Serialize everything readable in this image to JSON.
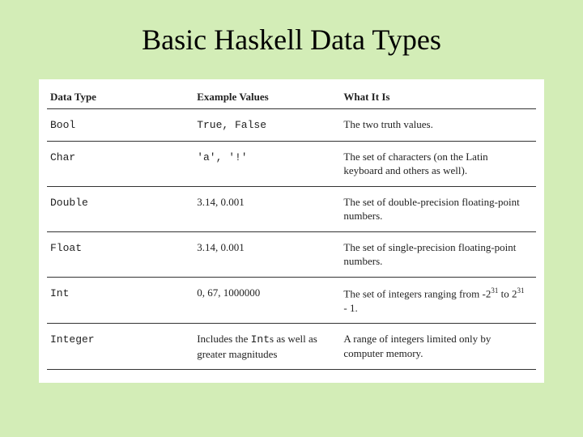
{
  "title": "Basic Haskell Data Types",
  "background_color": "#d3edb7",
  "table_background": "#ffffff",
  "border_color": "#333333",
  "headers": {
    "c1": "Data Type",
    "c2": "Example Values",
    "c3": "What It Is"
  },
  "rows": [
    {
      "type": "Bool",
      "example": "True, False",
      "example_mono": true,
      "desc": "The two truth values."
    },
    {
      "type": "Char",
      "example": "'a', '!'",
      "example_mono": true,
      "desc": "The set of characters (on the Latin keyboard and others as well)."
    },
    {
      "type": "Double",
      "example": "3.14, 0.001",
      "example_mono": false,
      "desc": "The set of double-precision floating-point numbers."
    },
    {
      "type": "Float",
      "example": "3.14, 0.001",
      "example_mono": false,
      "desc": "The set of single-precision floating-point numbers."
    },
    {
      "type": "Int",
      "example": "0, 67, 1000000",
      "example_mono": false,
      "desc": "The set of integers ranging from -2^31 to 2^31 - 1.",
      "desc_special": "int_range"
    },
    {
      "type": "Integer",
      "example": "Includes the Ints as well as greater magnitudes",
      "example_mono": false,
      "example_special": "integer_ex",
      "desc": "A range of integers limited only by computer memory."
    }
  ]
}
